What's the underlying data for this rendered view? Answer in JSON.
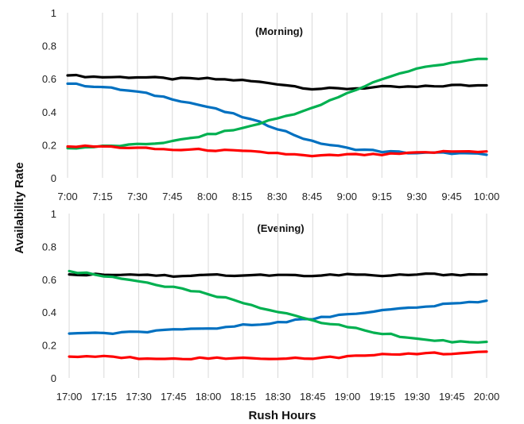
{
  "figure": {
    "ylabel": "Availability Rate",
    "xlabel": "Rush Hours"
  },
  "chart_data": [
    {
      "type": "line",
      "title": "(Morning)",
      "ylim": [
        0,
        1
      ],
      "yticks": [
        "0",
        "0.2",
        "0.4",
        "0.6",
        "0.8",
        "1"
      ],
      "categories": [
        "7:00",
        "7:15",
        "7:30",
        "7:45",
        "8:00",
        "8:15",
        "8:30",
        "8:45",
        "9:00",
        "9:15",
        "9:30",
        "9:45",
        "10:00"
      ],
      "grid": "vertical",
      "series": [
        {
          "color": "#000000",
          "values": [
            0.62,
            0.61,
            0.61,
            0.6,
            0.6,
            0.59,
            0.57,
            0.54,
            0.54,
            0.55,
            0.55,
            0.56,
            0.56
          ]
        },
        {
          "color": "#0070C0",
          "values": [
            0.57,
            0.55,
            0.52,
            0.48,
            0.43,
            0.37,
            0.3,
            0.22,
            0.18,
            0.16,
            0.15,
            0.15,
            0.14
          ]
        },
        {
          "color": "#00B050",
          "values": [
            0.18,
            0.19,
            0.2,
            0.22,
            0.26,
            0.3,
            0.36,
            0.42,
            0.51,
            0.6,
            0.66,
            0.7,
            0.72
          ]
        },
        {
          "color": "#FF0000",
          "values": [
            0.19,
            0.19,
            0.18,
            0.17,
            0.17,
            0.16,
            0.15,
            0.13,
            0.14,
            0.14,
            0.15,
            0.16,
            0.16
          ]
        }
      ]
    },
    {
      "type": "line",
      "title": "(Evening)",
      "ylim": [
        0,
        1
      ],
      "yticks": [
        "0",
        "0.2",
        "0.4",
        "0.6",
        "0.8",
        "1"
      ],
      "categories": [
        "17:00",
        "17:15",
        "17:30",
        "17:45",
        "18:00",
        "18:15",
        "18:30",
        "18:45",
        "19:00",
        "19:15",
        "19:30",
        "19:45",
        "20:00"
      ],
      "grid": "vertical",
      "series": [
        {
          "color": "#000000",
          "values": [
            0.63,
            0.63,
            0.63,
            0.62,
            0.63,
            0.62,
            0.63,
            0.62,
            0.63,
            0.62,
            0.63,
            0.63,
            0.63
          ]
        },
        {
          "color": "#0070C0",
          "values": [
            0.27,
            0.27,
            0.28,
            0.29,
            0.3,
            0.32,
            0.34,
            0.36,
            0.39,
            0.41,
            0.43,
            0.45,
            0.47
          ]
        },
        {
          "color": "#00B050",
          "values": [
            0.65,
            0.62,
            0.59,
            0.55,
            0.51,
            0.46,
            0.4,
            0.35,
            0.31,
            0.27,
            0.24,
            0.22,
            0.22
          ]
        },
        {
          "color": "#FF0000",
          "values": [
            0.13,
            0.13,
            0.12,
            0.12,
            0.12,
            0.12,
            0.12,
            0.12,
            0.13,
            0.14,
            0.15,
            0.15,
            0.16
          ]
        }
      ]
    }
  ]
}
